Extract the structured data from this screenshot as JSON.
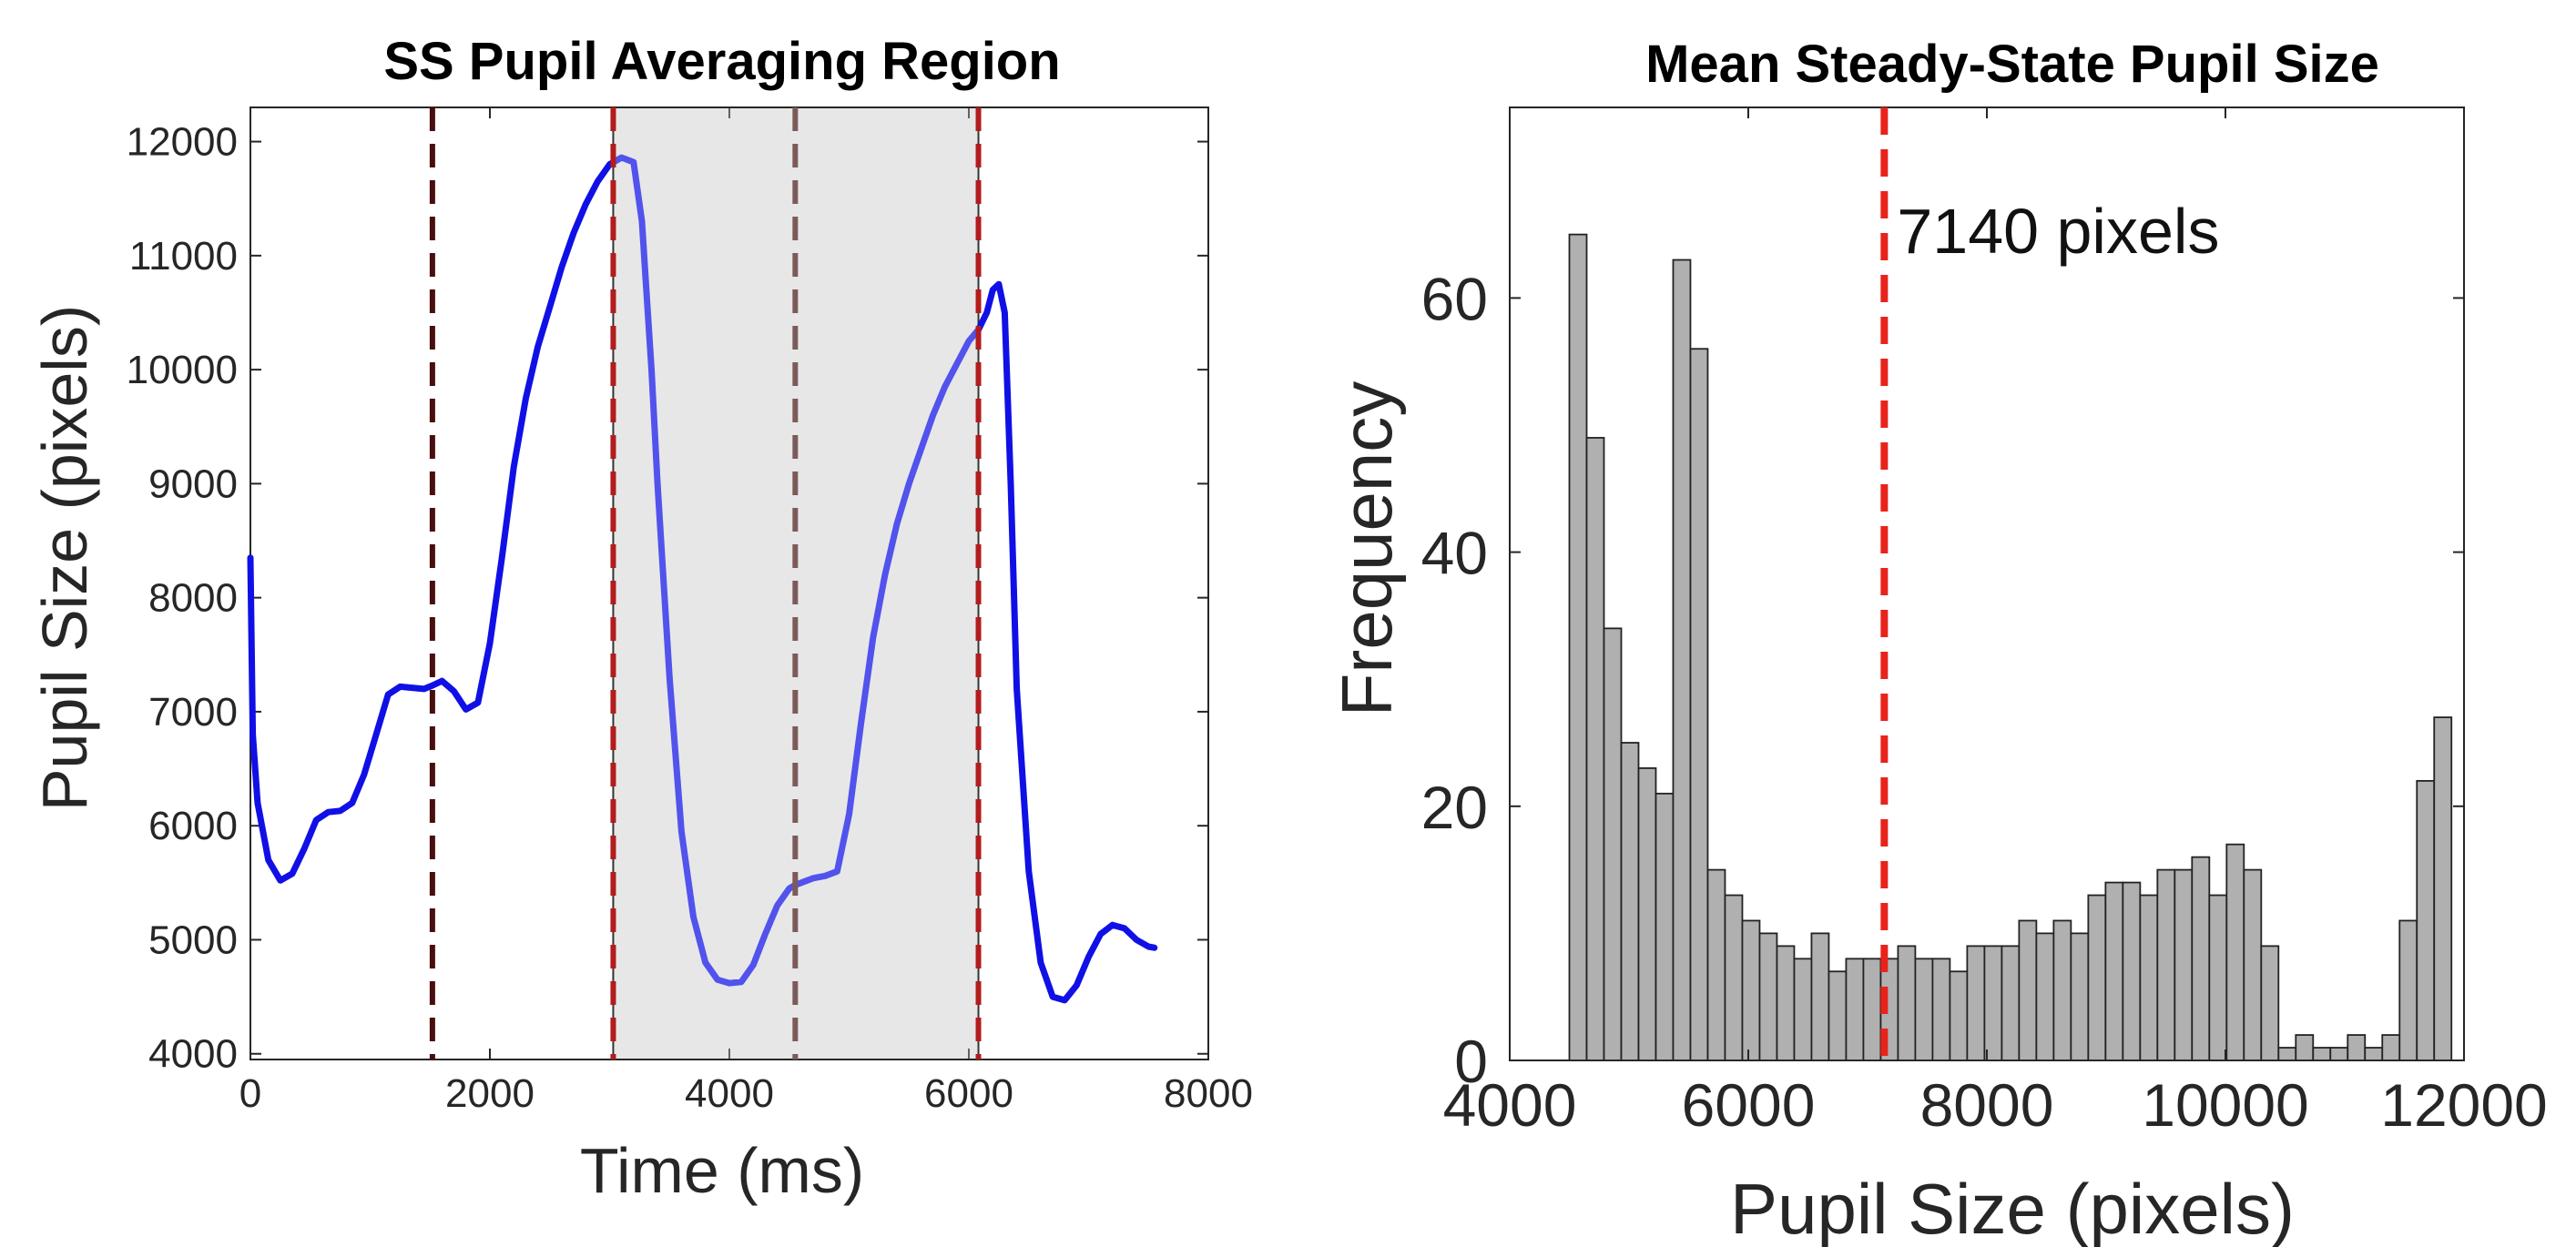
{
  "chart_data": [
    {
      "type": "line",
      "title": "SS Pupil Averaging Region",
      "xlabel": "Time (ms)",
      "ylabel": "Pupil Size (pixels)",
      "xlim": [
        0,
        8000
      ],
      "ylim": [
        3950,
        12300
      ],
      "xticks": [
        "0",
        "2000",
        "4000",
        "6000",
        "8000"
      ],
      "yticks": [
        "4000",
        "5000",
        "6000",
        "7000",
        "8000",
        "9000",
        "10000",
        "11000",
        "12000"
      ],
      "grid": false,
      "shaded_region": {
        "x": [
          3030,
          6080
        ],
        "color": "#dedede"
      },
      "vertical_lines": [
        {
          "x": 1520,
          "color": "#4a0d0d"
        },
        {
          "x": 3030,
          "color": "#b21c1c"
        },
        {
          "x": 4550,
          "color": "#7d5a5a"
        },
        {
          "x": 6080,
          "color": "#b21c1c"
        }
      ],
      "series": [
        {
          "color": "#1010e6",
          "x": [
            0,
            20,
            60,
            150,
            250,
            350,
            450,
            550,
            650,
            750,
            850,
            950,
            1050,
            1150,
            1250,
            1350,
            1450,
            1520,
            1600,
            1700,
            1800,
            1900,
            2000,
            2100,
            2200,
            2300,
            2400,
            2500,
            2600,
            2700,
            2800,
            2900,
            3000,
            3100,
            3200,
            3270,
            3300,
            3350,
            3400,
            3500,
            3600,
            3700,
            3800,
            3900,
            4000,
            4100,
            4200,
            4300,
            4400,
            4500,
            4550,
            4600,
            4700,
            4800,
            4900,
            5000,
            5100,
            5200,
            5300,
            5400,
            5500,
            5600,
            5700,
            5800,
            5900,
            6000,
            6080,
            6150,
            6200,
            6250,
            6300,
            6350,
            6400,
            6500,
            6600,
            6700,
            6800,
            6900,
            7000,
            7100,
            7200,
            7300,
            7400,
            7500,
            7550
          ],
          "y": [
            8350,
            6800,
            6200,
            5700,
            5520,
            5580,
            5800,
            6050,
            6120,
            6130,
            6200,
            6450,
            6800,
            7150,
            7220,
            7210,
            7200,
            7230,
            7270,
            7180,
            7020,
            7080,
            7600,
            8350,
            9150,
            9750,
            10200,
            10550,
            10900,
            11200,
            11450,
            11650,
            11800,
            11860,
            11820,
            11300,
            10800,
            10000,
            9000,
            7300,
            5950,
            5200,
            4800,
            4650,
            4620,
            4630,
            4780,
            5050,
            5300,
            5450,
            5480,
            5500,
            5540,
            5560,
            5600,
            6100,
            6900,
            7650,
            8200,
            8650,
            9000,
            9300,
            9600,
            9850,
            10050,
            10250,
            10350,
            10500,
            10700,
            10750,
            10500,
            9000,
            7200,
            5600,
            4800,
            4500,
            4470,
            4600,
            4850,
            5050,
            5130,
            5100,
            5000,
            4940,
            4930
          ]
        }
      ]
    },
    {
      "type": "bar",
      "title": "Mean Steady-State Pupil Size",
      "xlabel": "Pupil Size (pixels)",
      "ylabel": "Frequency",
      "xlim": [
        4000,
        12000
      ],
      "ylim": [
        0,
        75
      ],
      "xticks": [
        "4000",
        "6000",
        "8000",
        "10000",
        "12000"
      ],
      "yticks": [
        "0",
        "20",
        "40",
        "60"
      ],
      "grid": false,
      "bar_color": "#b0b0b0",
      "bin_start": 4500,
      "bin_width": 145,
      "values": [
        65,
        49,
        34,
        25,
        23,
        21,
        63,
        56,
        15,
        13,
        11,
        10,
        9,
        8,
        10,
        7,
        8,
        8,
        8,
        9,
        8,
        8,
        7,
        9,
        9,
        9,
        11,
        10,
        11,
        10,
        13,
        14,
        14,
        13,
        15,
        15,
        16,
        13,
        17,
        15,
        9,
        1,
        2,
        1,
        1,
        2,
        1,
        2,
        11,
        22,
        27
      ],
      "mean_line": {
        "x": 7140,
        "color": "#e8231b"
      },
      "annotation": "7140 pixels"
    }
  ]
}
